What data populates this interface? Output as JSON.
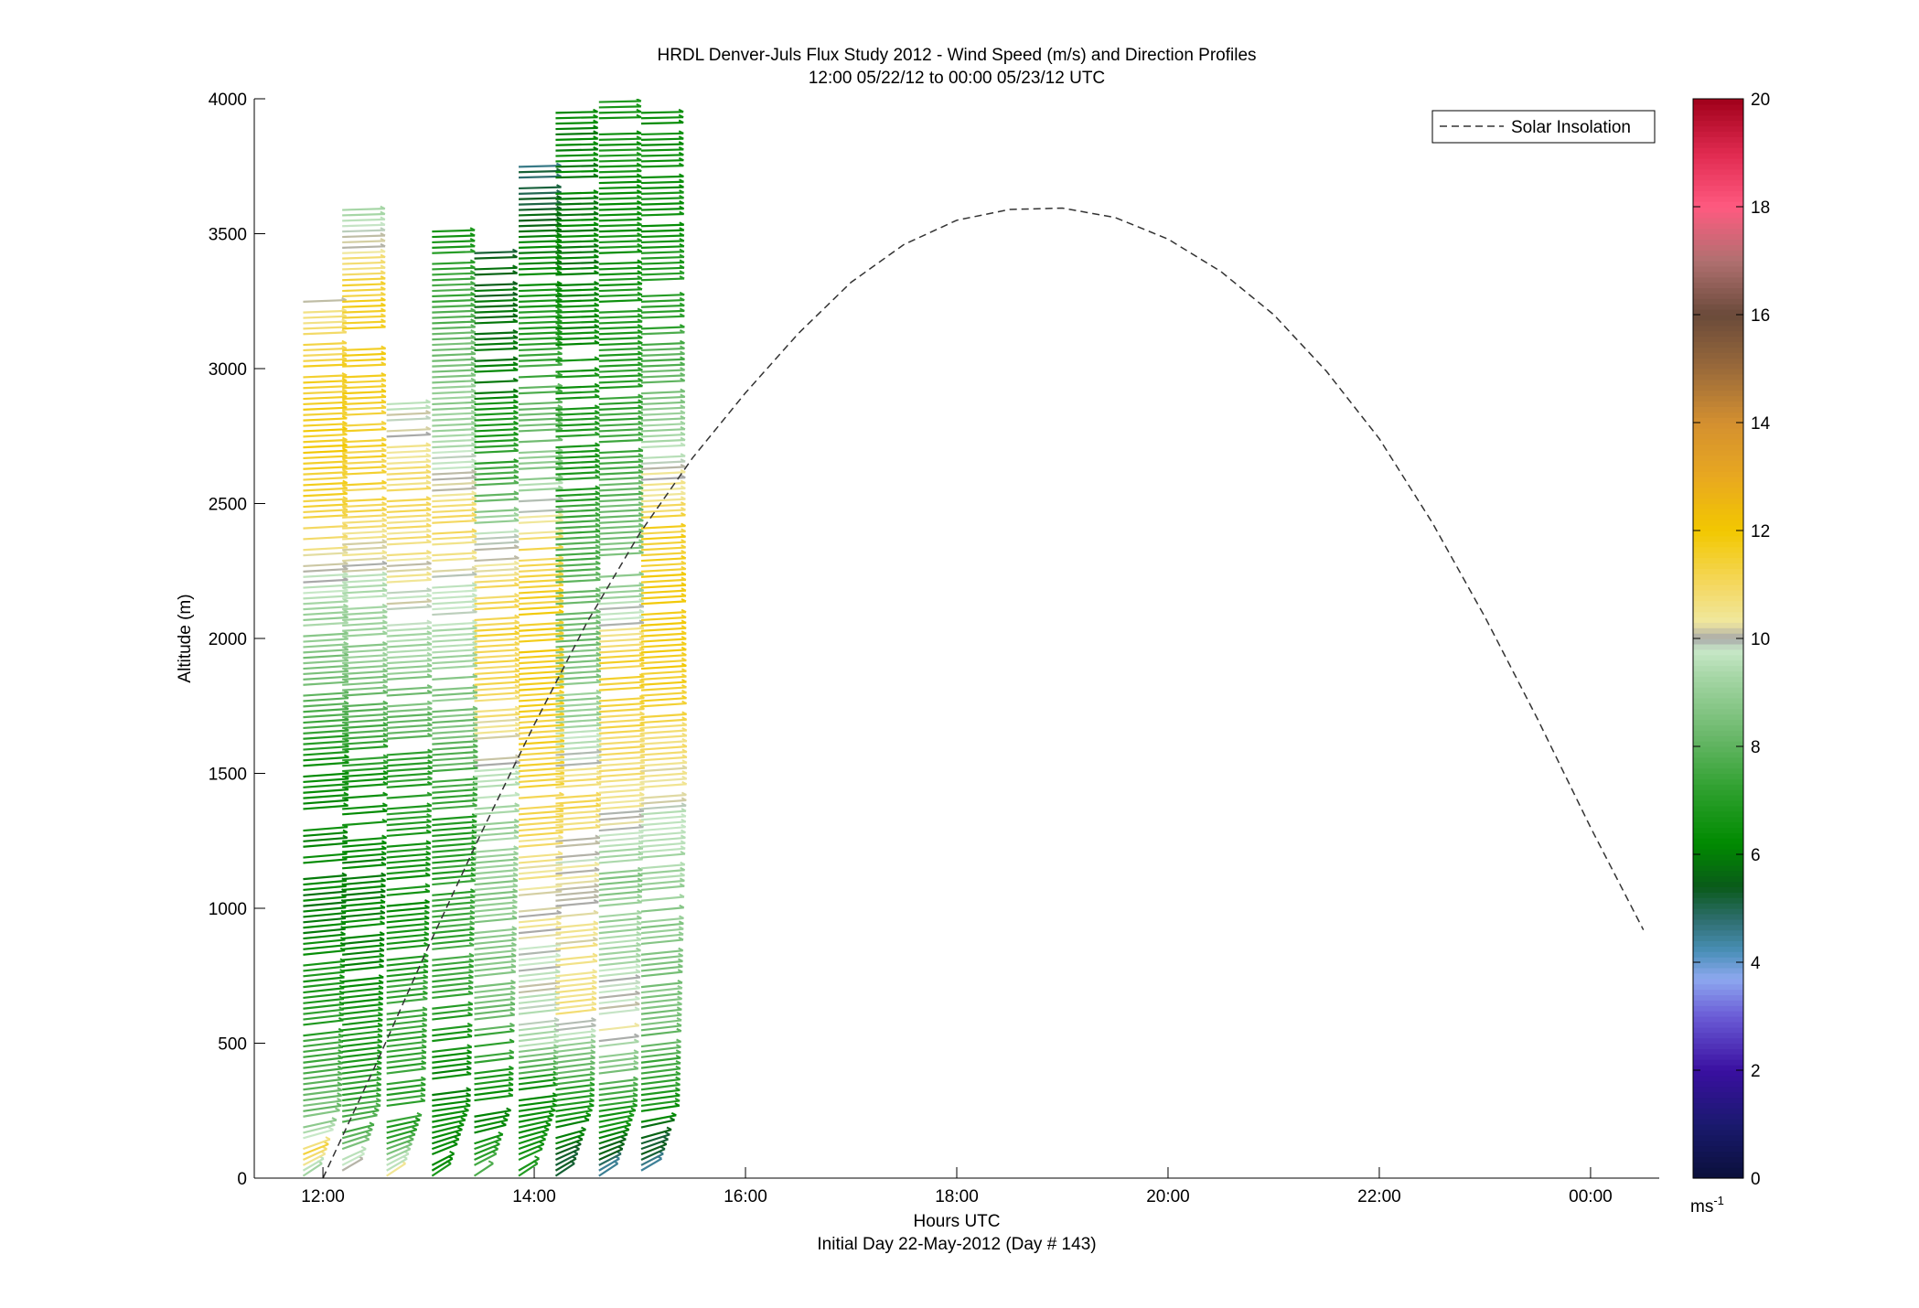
{
  "chart_data": {
    "type": "wind-barb-profile",
    "title": "HRDL Denver-Juls Flux Study 2012 - Wind Speed (m/s) and Direction Profiles",
    "subtitle": "12:00 05/22/12 to 00:00 05/23/12  UTC",
    "xlabel": "Hours UTC",
    "xlabel2": "Initial Day 22-May-2012 (Day # 143)",
    "ylabel": "Altitude (m)",
    "xlim_hours": [
      11.35,
      24.65
    ],
    "ylim": [
      0,
      4000
    ],
    "x_ticks": [
      {
        "hour": 12,
        "label": "12:00"
      },
      {
        "hour": 14,
        "label": "14:00"
      },
      {
        "hour": 16,
        "label": "16:00"
      },
      {
        "hour": 18,
        "label": "18:00"
      },
      {
        "hour": 20,
        "label": "20:00"
      },
      {
        "hour": 22,
        "label": "22:00"
      },
      {
        "hour": 24,
        "label": "00:00"
      }
    ],
    "y_ticks": [
      {
        "value": 0,
        "label": "0"
      },
      {
        "value": 500,
        "label": "500"
      },
      {
        "value": 1000,
        "label": "1000"
      },
      {
        "value": 1500,
        "label": "1500"
      },
      {
        "value": 2000,
        "label": "2000"
      },
      {
        "value": 2500,
        "label": "2500"
      },
      {
        "value": 3000,
        "label": "3000"
      },
      {
        "value": 3500,
        "label": "3500"
      },
      {
        "value": 4000,
        "label": "4000"
      }
    ],
    "legend": {
      "position": "top-right",
      "entries": [
        {
          "label": "Solar Insolation",
          "style": "dashed",
          "color": "#333333"
        }
      ]
    },
    "colorbar": {
      "min": 0,
      "max": 20,
      "unit": "ms-1",
      "ticks": [
        {
          "value": 0,
          "label": "0"
        },
        {
          "value": 2,
          "label": "2"
        },
        {
          "value": 4,
          "label": "4"
        },
        {
          "value": 6,
          "label": "6"
        },
        {
          "value": 8,
          "label": "8"
        },
        {
          "value": 10,
          "label": "10"
        },
        {
          "value": 12,
          "label": "12"
        },
        {
          "value": 14,
          "label": "14"
        },
        {
          "value": 16,
          "label": "16"
        },
        {
          "value": 18,
          "label": "18"
        },
        {
          "value": 20,
          "label": "20"
        }
      ],
      "stops": [
        {
          "value": 0,
          "color": "#0a0f3a"
        },
        {
          "value": 1,
          "color": "#1a1a6e"
        },
        {
          "value": 2,
          "color": "#3a0fa0"
        },
        {
          "value": 3,
          "color": "#6a5cd6"
        },
        {
          "value": 3.7,
          "color": "#8ea8f0"
        },
        {
          "value": 4.2,
          "color": "#4a90b8"
        },
        {
          "value": 4.8,
          "color": "#2e6e6e"
        },
        {
          "value": 5.4,
          "color": "#0a5a1a"
        },
        {
          "value": 6.2,
          "color": "#008a00"
        },
        {
          "value": 7.2,
          "color": "#2ea02e"
        },
        {
          "value": 8.2,
          "color": "#6ab86a"
        },
        {
          "value": 9.3,
          "color": "#a6d6a6"
        },
        {
          "value": 9.8,
          "color": "#c8e8c8"
        },
        {
          "value": 10,
          "color": "#a8a8a8"
        },
        {
          "value": 10.3,
          "color": "#f0e8a0"
        },
        {
          "value": 11,
          "color": "#f4d860"
        },
        {
          "value": 12,
          "color": "#f2c800"
        },
        {
          "value": 13,
          "color": "#e8a820"
        },
        {
          "value": 14,
          "color": "#d49030"
        },
        {
          "value": 15,
          "color": "#9a6a3a"
        },
        {
          "value": 16,
          "color": "#6a4a3a"
        },
        {
          "value": 17,
          "color": "#b07070"
        },
        {
          "value": 18,
          "color": "#ff5a80"
        },
        {
          "value": 19,
          "color": "#e02a50"
        },
        {
          "value": 20,
          "color": "#a0001a"
        }
      ]
    },
    "solar_insolation": {
      "color": "#333333",
      "points": [
        {
          "hour": 12.0,
          "alt": 0
        },
        {
          "hour": 12.5,
          "alt": 420
        },
        {
          "hour": 13.0,
          "alt": 860
        },
        {
          "hour": 13.5,
          "alt": 1280
        },
        {
          "hour": 14.0,
          "alt": 1680
        },
        {
          "hour": 14.5,
          "alt": 2060
        },
        {
          "hour": 15.0,
          "alt": 2390
        },
        {
          "hour": 15.5,
          "alt": 2670
        },
        {
          "hour": 16.0,
          "alt": 2910
        },
        {
          "hour": 16.5,
          "alt": 3130
        },
        {
          "hour": 17.0,
          "alt": 3320
        },
        {
          "hour": 17.5,
          "alt": 3460
        },
        {
          "hour": 18.0,
          "alt": 3550
        },
        {
          "hour": 18.5,
          "alt": 3590
        },
        {
          "hour": 19.0,
          "alt": 3595
        },
        {
          "hour": 19.5,
          "alt": 3560
        },
        {
          "hour": 20.0,
          "alt": 3480
        },
        {
          "hour": 20.5,
          "alt": 3360
        },
        {
          "hour": 21.0,
          "alt": 3200
        },
        {
          "hour": 21.5,
          "alt": 2990
        },
        {
          "hour": 22.0,
          "alt": 2740
        },
        {
          "hour": 22.5,
          "alt": 2430
        },
        {
          "hour": 23.0,
          "alt": 2080
        },
        {
          "hour": 23.5,
          "alt": 1700
        },
        {
          "hour": 24.0,
          "alt": 1300
        },
        {
          "hour": 24.5,
          "alt": 920
        }
      ]
    },
    "profiles": [
      {
        "hour": 11.83,
        "top": 3270,
        "speed": [
          [
            0,
            9.0
          ],
          [
            80,
            11.5
          ],
          [
            200,
            8.5
          ],
          [
            600,
            7.0
          ],
          [
            1000,
            6.0
          ],
          [
            1500,
            6.5
          ],
          [
            1900,
            8.5
          ],
          [
            2200,
            9.7
          ],
          [
            2400,
            11.2
          ],
          [
            2700,
            11.8
          ],
          [
            3000,
            11.5
          ],
          [
            3270,
            10.3
          ]
        ]
      },
      {
        "hour": 12.2,
        "top": 3600,
        "speed": [
          [
            0,
            11.0
          ],
          [
            120,
            8.0
          ],
          [
            500,
            6.8
          ],
          [
            1000,
            6.0
          ],
          [
            1500,
            6.8
          ],
          [
            1900,
            8.8
          ],
          [
            2200,
            9.7
          ],
          [
            2500,
            11.2
          ],
          [
            3000,
            11.8
          ],
          [
            3300,
            11.5
          ],
          [
            3600,
            9.0
          ]
        ]
      },
      {
        "hour": 12.62,
        "top": 2870,
        "speed": [
          [
            0,
            10.5
          ],
          [
            150,
            7.0
          ],
          [
            600,
            7.5
          ],
          [
            1000,
            6.4
          ],
          [
            1500,
            7.2
          ],
          [
            1900,
            9.0
          ],
          [
            2200,
            10.2
          ],
          [
            2500,
            11.0
          ],
          [
            2870,
            9.8
          ]
        ]
      },
      {
        "hour": 13.05,
        "top": 3530,
        "speed": [
          [
            0,
            6.5
          ],
          [
            300,
            6.0
          ],
          [
            800,
            7.5
          ],
          [
            1300,
            7.0
          ],
          [
            1700,
            8.5
          ],
          [
            2000,
            9.5
          ],
          [
            2250,
            10.0
          ],
          [
            2450,
            11.2
          ],
          [
            2580,
            10.0
          ],
          [
            3530,
            6.6
          ]
        ]
      },
      {
        "hour": 13.45,
        "top": 3440,
        "speed": [
          [
            0,
            8.0
          ],
          [
            200,
            6.0
          ],
          [
            700,
            8.5
          ],
          [
            1200,
            9.0
          ],
          [
            1500,
            9.7
          ],
          [
            1800,
            11.0
          ],
          [
            2100,
            11.4
          ],
          [
            2400,
            9.5
          ],
          [
            2600,
            7.5
          ],
          [
            2950,
            6.0
          ],
          [
            3440,
            5.5
          ]
        ]
      },
      {
        "hour": 13.87,
        "top": 3760,
        "speed": [
          [
            0,
            7.0
          ],
          [
            300,
            6.0
          ],
          [
            500,
            9.5
          ],
          [
            800,
            10.0
          ],
          [
            1100,
            10.4
          ],
          [
            1400,
            11.3
          ],
          [
            1700,
            11.5
          ],
          [
            2000,
            11.8
          ],
          [
            2300,
            11.2
          ],
          [
            2600,
            9.0
          ],
          [
            3000,
            7.5
          ],
          [
            3300,
            6.5
          ],
          [
            3760,
            4.8
          ]
        ]
      },
      {
        "hour": 14.22,
        "top": 3960,
        "speed": [
          [
            0,
            5.0
          ],
          [
            300,
            7.0
          ],
          [
            600,
            10.5
          ],
          [
            900,
            10.4
          ],
          [
            1200,
            10.0
          ],
          [
            1400,
            11.2
          ],
          [
            1600,
            9.6
          ],
          [
            1900,
            8.5
          ],
          [
            2200,
            8.0
          ],
          [
            2600,
            7.0
          ],
          [
            3000,
            6.5
          ],
          [
            3400,
            6.0
          ],
          [
            3960,
            6.2
          ]
        ]
      },
      {
        "hour": 14.63,
        "top": 4000,
        "speed": [
          [
            0,
            4.5
          ],
          [
            300,
            7.5
          ],
          [
            550,
            10.2
          ],
          [
            800,
            9.5
          ],
          [
            1100,
            8.7
          ],
          [
            1300,
            10.1
          ],
          [
            1600,
            11.0
          ],
          [
            1900,
            11.4
          ],
          [
            2200,
            9.0
          ],
          [
            2600,
            7.8
          ],
          [
            3000,
            7.0
          ],
          [
            3500,
            6.5
          ],
          [
            4000,
            6.6
          ]
        ]
      },
      {
        "hour": 15.03,
        "top": 3950,
        "speed": [
          [
            0,
            4.4
          ],
          [
            250,
            6.5
          ],
          [
            600,
            8.5
          ],
          [
            1000,
            9.0
          ],
          [
            1300,
            9.6
          ],
          [
            1500,
            10.4
          ],
          [
            1800,
            11.6
          ],
          [
            2100,
            12.0
          ],
          [
            2400,
            11.5
          ],
          [
            2700,
            9.5
          ],
          [
            3100,
            7.5
          ],
          [
            3500,
            6.5
          ],
          [
            3950,
            6.4
          ]
        ]
      }
    ]
  }
}
